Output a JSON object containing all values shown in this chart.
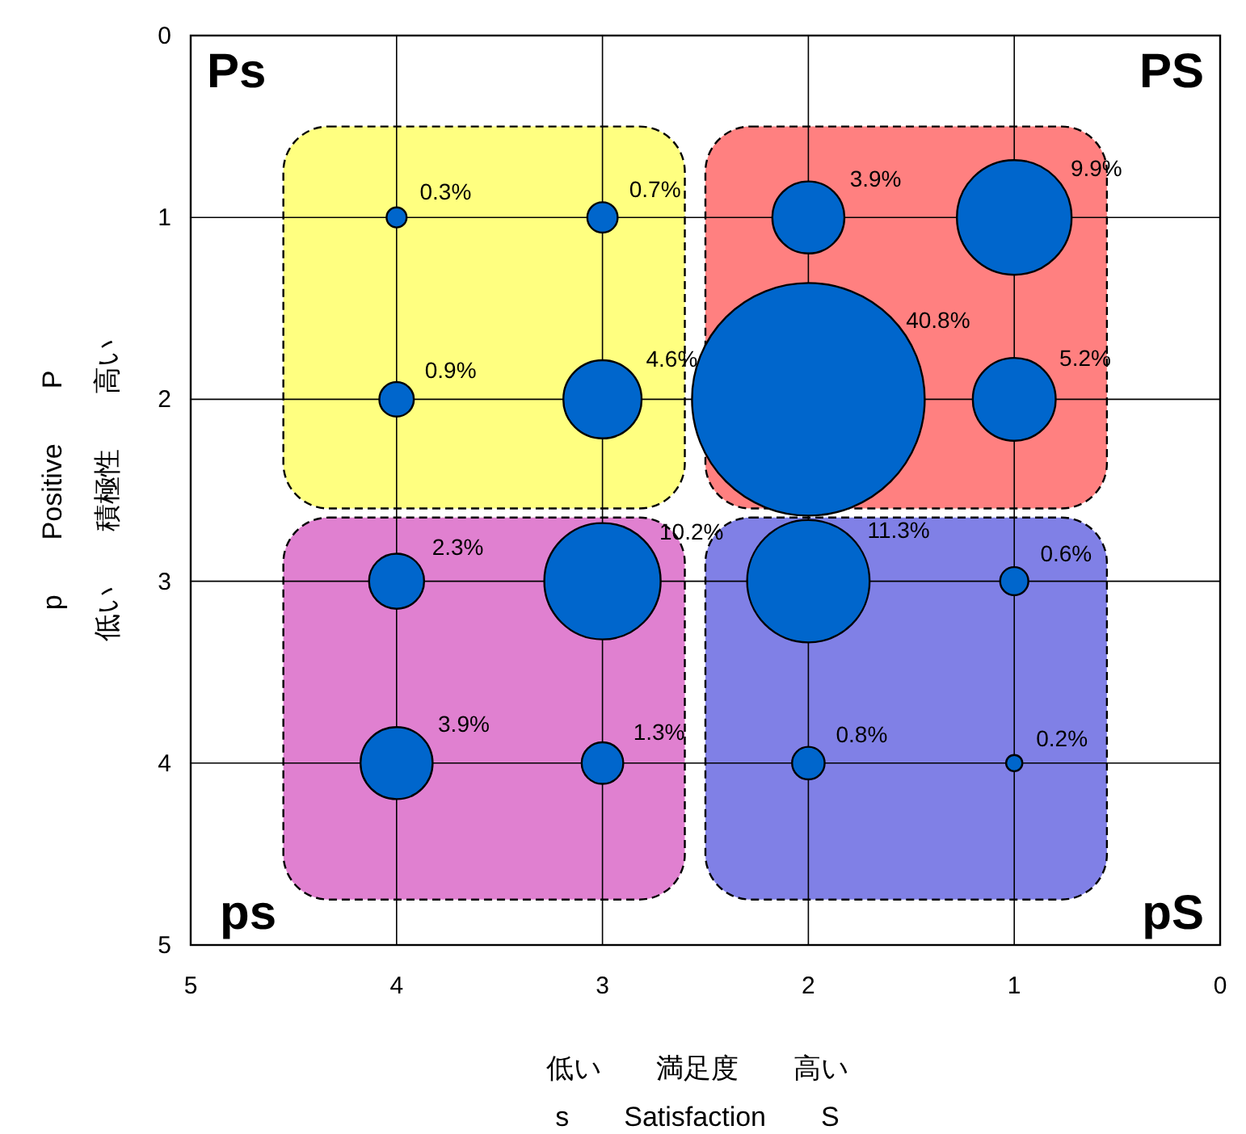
{
  "chart_data": {
    "type": "bubble",
    "xlabel": "低い　　満足度　　高い\ns　　Satisfaction　　S",
    "ylabel": "p　　Positive　　P\n低い　　積極性　　高い",
    "x": [
      4,
      3,
      2,
      1,
      4,
      3,
      2,
      1,
      4,
      3,
      2,
      1,
      4,
      3,
      2,
      1
    ],
    "values": [
      1,
      1,
      1,
      1,
      2,
      2,
      2,
      2,
      3,
      3,
      3,
      3,
      4,
      4,
      4,
      4
    ],
    "sizes": [
      0.0074,
      0.017,
      0.096,
      0.243,
      0.022,
      0.113,
      1,
      0.127,
      0.056,
      0.25,
      0.277,
      0.0147,
      0.096,
      0.032,
      0.0196,
      0.0049
    ],
    "color": "#0066cc",
    "xlim": [
      5,
      0
    ],
    "xticks": [
      5,
      4,
      3,
      2,
      1,
      0
    ],
    "ylim": [
      5,
      0
    ],
    "yticks": [
      5,
      4,
      3,
      2,
      1,
      0
    ],
    "grid": true,
    "annotations": [
      "Ps",
      "PS",
      "ps",
      "pS",
      "0.3%",
      "0.7%",
      "3.9%",
      "9.9%",
      "0.9%",
      "4.6%",
      "40.8%",
      "5.2%",
      "2.3%",
      "10.2%",
      "11.3%",
      "0.6%",
      "3.9%",
      "1.3%",
      "0.8%",
      "0.2%"
    ]
  }
}
